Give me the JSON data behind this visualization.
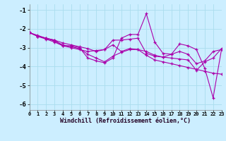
{
  "xlabel": "Windchill (Refroidissement éolien,°C)",
  "bg_color": "#cceeff",
  "grid_color": "#aaddee",
  "line_color": "#aa00aa",
  "x_ticks": [
    0,
    1,
    2,
    3,
    4,
    5,
    6,
    7,
    8,
    9,
    10,
    11,
    12,
    13,
    14,
    15,
    16,
    17,
    18,
    19,
    20,
    21,
    22,
    23
  ],
  "y_ticks": [
    -6,
    -5,
    -4,
    -3,
    -2,
    -1
  ],
  "xlim": [
    0,
    23
  ],
  "ylim": [
    -6.3,
    -0.7
  ],
  "series": [
    [
      -2.2,
      -2.4,
      -2.5,
      -2.6,
      -2.9,
      -2.9,
      -3.0,
      -3.55,
      -3.7,
      -3.8,
      -3.55,
      -2.5,
      -2.3,
      -2.3,
      -1.2,
      -2.7,
      -3.3,
      -3.35,
      -2.8,
      -2.9,
      -3.1,
      -4.1,
      -5.65,
      -3.1
    ],
    [
      -2.2,
      -2.35,
      -2.5,
      -2.6,
      -2.75,
      -2.85,
      -2.95,
      -3.05,
      -3.2,
      -3.1,
      -2.6,
      -2.6,
      -2.55,
      -2.5,
      -3.3,
      -3.45,
      -3.5,
      -3.35,
      -3.2,
      -3.35,
      -3.85,
      -3.7,
      -3.2,
      -3.1
    ],
    [
      -2.2,
      -2.4,
      -2.55,
      -2.7,
      -2.9,
      -3.0,
      -3.1,
      -3.2,
      -3.15,
      -3.1,
      -2.85,
      -3.2,
      -3.05,
      -3.1,
      -3.2,
      -3.4,
      -3.5,
      -3.55,
      -3.6,
      -3.65,
      -4.2,
      -3.75,
      -3.55,
      -3.05
    ],
    [
      -2.2,
      -2.4,
      -2.5,
      -2.65,
      -2.85,
      -2.95,
      -3.05,
      -3.35,
      -3.55,
      -3.75,
      -3.45,
      -3.25,
      -3.1,
      -3.1,
      -3.4,
      -3.65,
      -3.75,
      -3.85,
      -3.95,
      -4.05,
      -4.15,
      -4.25,
      -4.35,
      -4.4
    ]
  ]
}
